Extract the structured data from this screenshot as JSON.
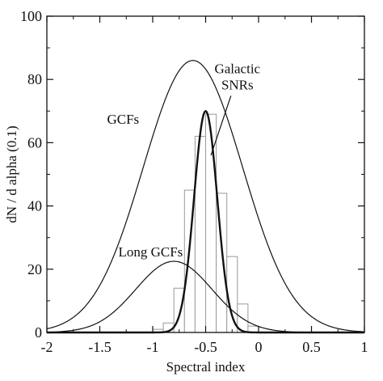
{
  "chart_data": {
    "type": "line",
    "xlabel": "Spectral index",
    "ylabel": "dN / d alpha (0.1)",
    "xlim": [
      -2,
      1
    ],
    "ylim": [
      0,
      100
    ],
    "x_ticks": [
      -2,
      -1.5,
      -1,
      -0.5,
      0,
      0.5,
      1
    ],
    "x_tick_labels": [
      "-2",
      "-1.5",
      "-1",
      "-0.5",
      "0",
      "0.5",
      "1"
    ],
    "y_ticks": [
      0,
      20,
      40,
      60,
      80,
      100
    ],
    "y_tick_labels": [
      "0",
      "20",
      "40",
      "60",
      "80",
      "100"
    ],
    "grid": false,
    "series": [
      {
        "name": "GCFs",
        "shape": "gaussian",
        "peak_x": -0.62,
        "peak_y": 86,
        "sigma": 0.47,
        "x": [
          -2.0,
          -1.75,
          -1.5,
          -1.25,
          -1.0,
          -0.75,
          -0.62,
          -0.5,
          -0.25,
          0.0,
          0.25,
          0.5,
          0.75,
          1.0
        ],
        "y": [
          1.2,
          4.8,
          15.4,
          35.4,
          62.0,
          82.6,
          86.0,
          83.1,
          63.7,
          36.8,
          16.2,
          5.3,
          1.3,
          0.2
        ]
      },
      {
        "name": "Long GCFs",
        "shape": "gaussian",
        "peak_x": -0.8,
        "peak_y": 22.5,
        "sigma": 0.36,
        "x": [
          -2.0,
          -1.5,
          -1.0,
          -0.8,
          -0.5,
          0.0,
          0.5
        ],
        "y": [
          0.9,
          3.4,
          19.1,
          22.5,
          15.1,
          1.9,
          0.0
        ]
      },
      {
        "name": "Galactic SNRs",
        "shape": "gaussian",
        "peak_x": -0.5,
        "peak_y": 70,
        "sigma": 0.11,
        "x": [
          -0.8,
          -0.7,
          -0.6,
          -0.5,
          -0.4,
          -0.3,
          -0.2
        ],
        "y": [
          1.7,
          13.8,
          46.7,
          70.0,
          46.7,
          13.8,
          1.7
        ]
      }
    ],
    "histogram": {
      "bin_width": 0.1,
      "bins": [
        {
          "x0": -1.0,
          "x1": -0.9,
          "count": 1
        },
        {
          "x0": -0.9,
          "x1": -0.8,
          "count": 3
        },
        {
          "x0": -0.8,
          "x1": -0.7,
          "count": 14
        },
        {
          "x0": -0.7,
          "x1": -0.6,
          "count": 45
        },
        {
          "x0": -0.6,
          "x1": -0.5,
          "count": 62
        },
        {
          "x0": -0.5,
          "x1": -0.4,
          "count": 69
        },
        {
          "x0": -0.4,
          "x1": -0.3,
          "count": 44
        },
        {
          "x0": -0.3,
          "x1": -0.2,
          "count": 24
        },
        {
          "x0": -0.2,
          "x1": -0.1,
          "count": 9
        },
        {
          "x0": -0.1,
          "x1": 0.0,
          "count": 2
        }
      ]
    },
    "annotations": [
      {
        "id": "gcfs",
        "text": "GCFs",
        "x": -1.28,
        "y": 66
      },
      {
        "id": "long-gcfs",
        "text": "Long GCFs",
        "x": -1.02,
        "y": 24
      },
      {
        "id": "galactic-snrs",
        "lines": [
          "Galactic",
          "SNRs"
        ],
        "x": -0.2,
        "y": 82,
        "arrow_to": [
          -0.45,
          56
        ]
      }
    ]
  }
}
